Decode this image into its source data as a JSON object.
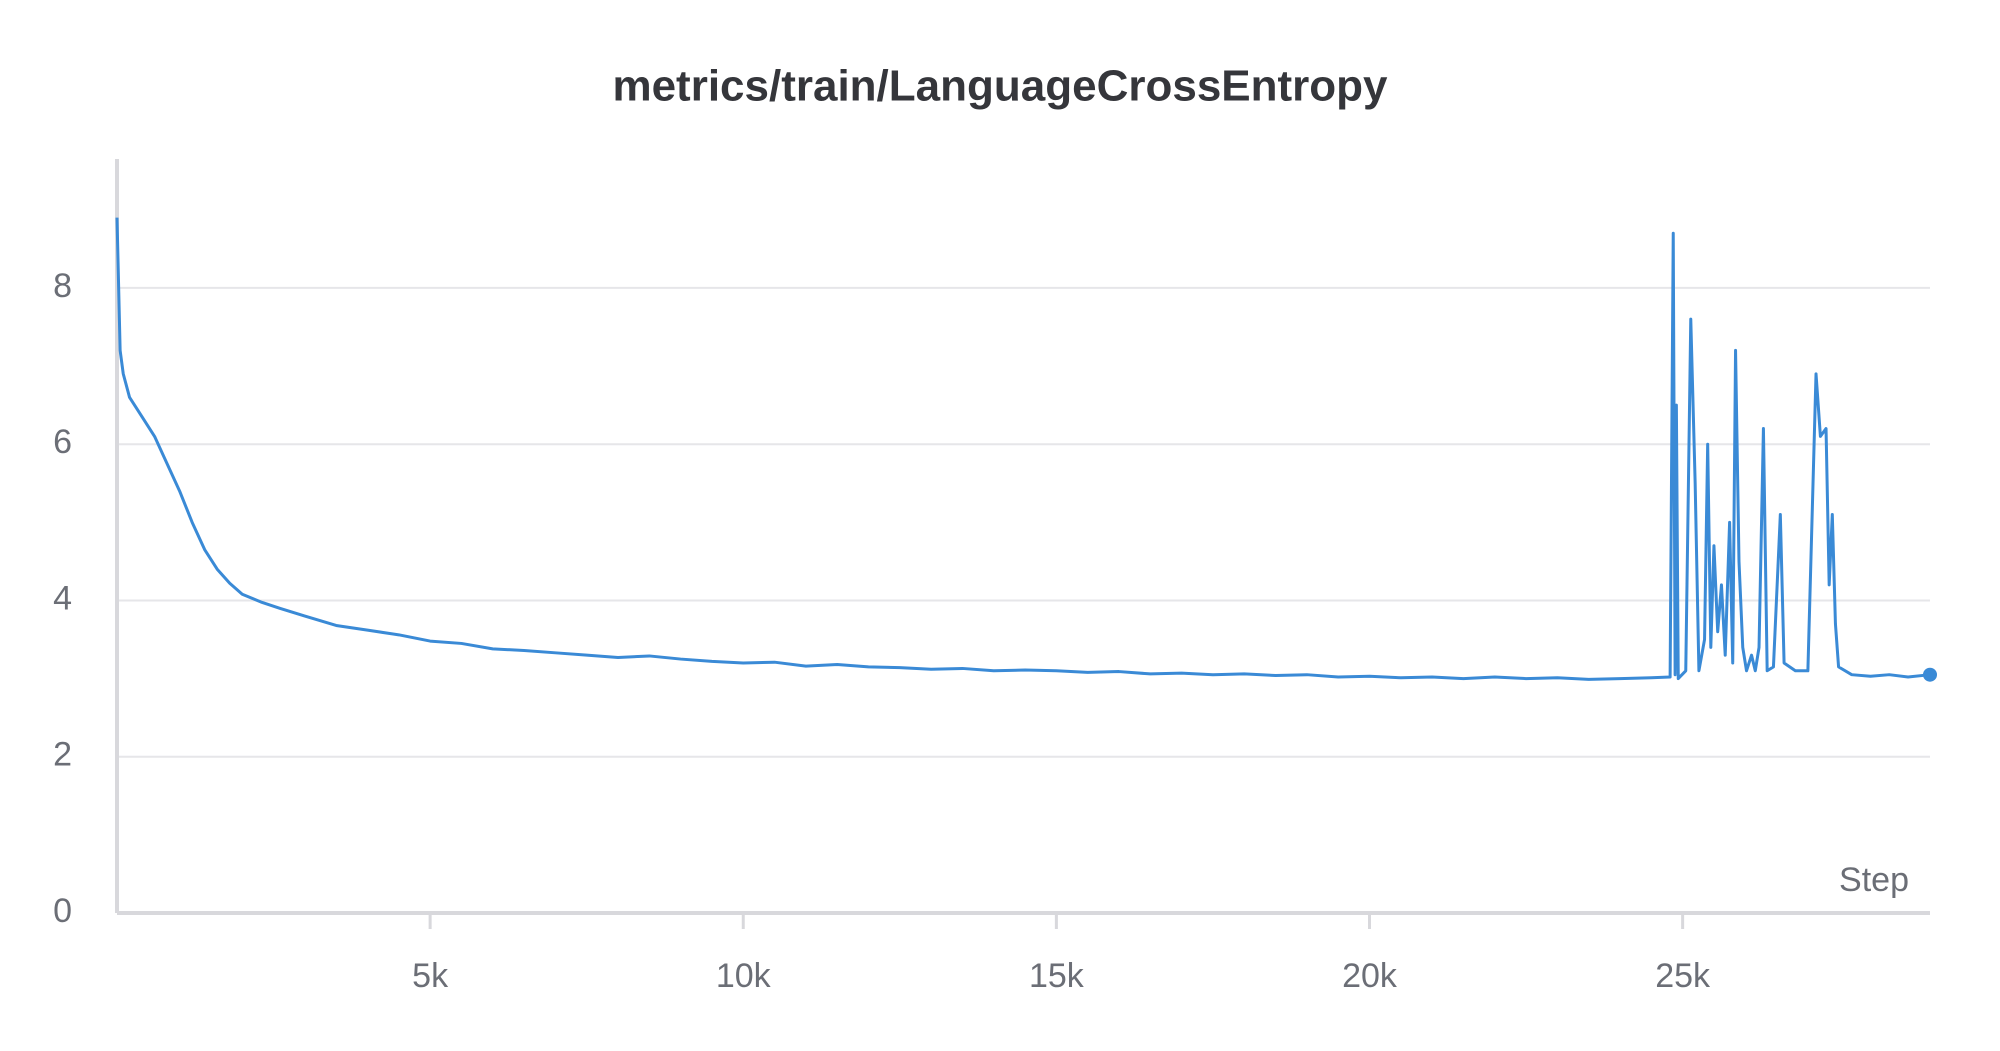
{
  "chart_data": {
    "type": "line",
    "title": "metrics/train/LanguageCrossEntropy",
    "x_label": "Step",
    "x": [
      0,
      50,
      100,
      200,
      400,
      600,
      800,
      1000,
      1200,
      1400,
      1600,
      1800,
      2000,
      2300,
      2600,
      3000,
      3500,
      4000,
      4500,
      5000,
      5500,
      6000,
      6500,
      7000,
      7500,
      8000,
      8500,
      9000,
      9500,
      10000,
      10500,
      11000,
      11500,
      12000,
      12500,
      13000,
      13500,
      14000,
      14500,
      15000,
      15500,
      16000,
      16500,
      17000,
      17500,
      18000,
      18500,
      19000,
      19500,
      20000,
      20500,
      21000,
      21500,
      22000,
      22500,
      23000,
      23500,
      24000,
      24500,
      24800,
      24850,
      24880,
      24900,
      24930,
      25050,
      25130,
      25200,
      25260,
      25350,
      25400,
      25450,
      25500,
      25560,
      25620,
      25680,
      25750,
      25800,
      25845,
      25900,
      25960,
      26020,
      26100,
      26160,
      26220,
      26290,
      26350,
      26450,
      26560,
      26620,
      26800,
      27000,
      27130,
      27200,
      27290,
      27340,
      27390,
      27440,
      27490,
      27700,
      28000,
      28300,
      28600,
      28950
    ],
    "series": [
      {
        "name": "LanguageCrossEntropy",
        "color": "#3a8ad6",
        "values": [
          8.9,
          7.2,
          6.9,
          6.6,
          6.35,
          6.1,
          5.75,
          5.4,
          5.0,
          4.65,
          4.4,
          4.22,
          4.08,
          3.98,
          3.9,
          3.8,
          3.68,
          3.62,
          3.56,
          3.48,
          3.45,
          3.38,
          3.36,
          3.33,
          3.3,
          3.27,
          3.29,
          3.25,
          3.22,
          3.2,
          3.21,
          3.16,
          3.18,
          3.15,
          3.14,
          3.12,
          3.13,
          3.1,
          3.11,
          3.1,
          3.08,
          3.09,
          3.06,
          3.07,
          3.05,
          3.06,
          3.04,
          3.05,
          3.02,
          3.03,
          3.01,
          3.02,
          3.0,
          3.02,
          3.0,
          3.01,
          2.99,
          3.0,
          3.01,
          3.02,
          8.7,
          3.05,
          6.5,
          3.0,
          3.1,
          7.6,
          5.5,
          3.1,
          3.5,
          6.0,
          3.4,
          4.7,
          3.6,
          4.2,
          3.3,
          5.0,
          3.2,
          7.2,
          4.5,
          3.4,
          3.1,
          3.3,
          3.1,
          3.4,
          6.2,
          3.1,
          3.15,
          5.1,
          3.2,
          3.1,
          3.1,
          6.9,
          6.1,
          6.2,
          4.2,
          5.1,
          3.7,
          3.15,
          3.05,
          3.03,
          3.05,
          3.02,
          3.05
        ]
      }
    ],
    "xlim": [
      0,
      28950
    ],
    "ylim": [
      0,
      9.65
    ],
    "xticks": [
      {
        "value": 5000,
        "label": "5k"
      },
      {
        "value": 10000,
        "label": "10k"
      },
      {
        "value": 15000,
        "label": "15k"
      },
      {
        "value": 20000,
        "label": "20k"
      },
      {
        "value": 25000,
        "label": "25k"
      }
    ],
    "yticks": [
      0,
      2,
      4,
      6,
      8
    ],
    "grid": true
  }
}
